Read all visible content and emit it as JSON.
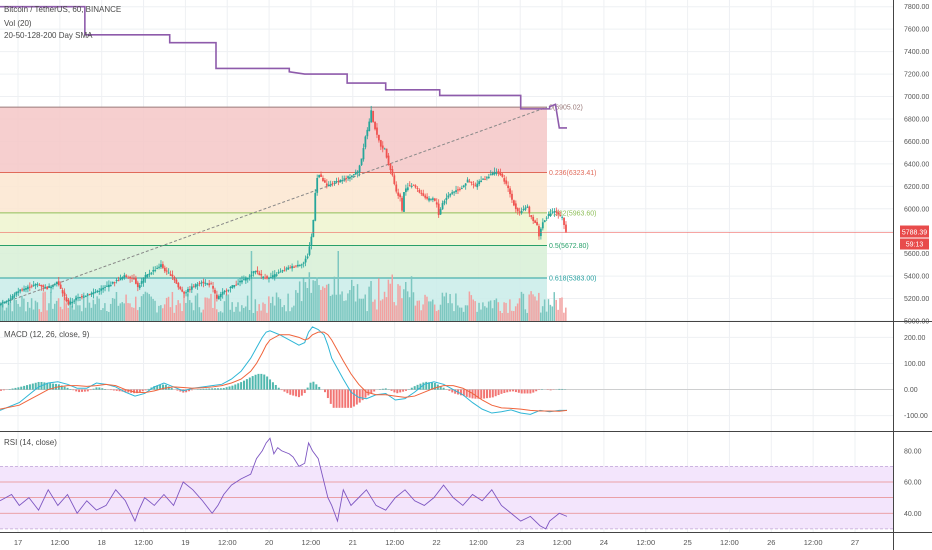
{
  "header": {
    "symbol_line": "Bitcoin / TetherUS, 60, BINANCE",
    "volume_label": "Vol (20)",
    "sma_label": "20-50-128-200 Day SMA"
  },
  "panes": {
    "macd_label": "MACD (12, 26, close, 9)",
    "rsi_label": "RSI (14, close)"
  },
  "price_badges": {
    "last_price": "5788.39",
    "countdown": "59:13"
  },
  "colors": {
    "up": "#26a69a",
    "down": "#ef5350",
    "sma": "#8e5bab",
    "macd": "#2fb6d6",
    "signal": "#f0643c",
    "rsi": "#7e57c2",
    "rsi_band": "#f3e5fc",
    "badge": "#e84b4b"
  },
  "chart_data": [
    {
      "type": "candlestick",
      "title": "Bitcoin / TetherUS, 60, BINANCE",
      "x_ticks": [
        "17",
        "12:00",
        "18",
        "12:00",
        "19",
        "12:00",
        "20",
        "12:00",
        "21",
        "12:00",
        "22",
        "12:00",
        "23",
        "12:00",
        "24",
        "12:00",
        "25",
        "12:00",
        "26",
        "12:00",
        "27"
      ],
      "y_ticks": [
        "7800.00",
        "7600.00",
        "7400.00",
        "7200.00",
        "7000.00",
        "6800.00",
        "6600.00",
        "6400.00",
        "6200.00",
        "6000.00",
        "5800.00",
        "5600.00",
        "5400.00",
        "5200.00",
        "5000.00"
      ],
      "ylim": [
        5000,
        7860
      ],
      "grid": true,
      "close_path": [
        [
          0,
          5150
        ],
        [
          6,
          5200
        ],
        [
          10,
          5270
        ],
        [
          15,
          5300
        ],
        [
          20,
          5330
        ],
        [
          25,
          5290
        ],
        [
          30,
          5350
        ],
        [
          33,
          5250
        ],
        [
          36,
          5150
        ],
        [
          40,
          5200
        ],
        [
          45,
          5230
        ],
        [
          50,
          5260
        ],
        [
          55,
          5300
        ],
        [
          60,
          5350
        ],
        [
          65,
          5400
        ],
        [
          70,
          5380
        ],
        [
          72,
          5300
        ],
        [
          76,
          5400
        ],
        [
          80,
          5450
        ],
        [
          84,
          5500
        ],
        [
          86,
          5450
        ],
        [
          90,
          5400
        ],
        [
          93,
          5300
        ],
        [
          96,
          5250
        ],
        [
          100,
          5300
        ],
        [
          105,
          5350
        ],
        [
          110,
          5320
        ],
        [
          113,
          5200
        ],
        [
          116,
          5250
        ],
        [
          120,
          5300
        ],
        [
          125,
          5350
        ],
        [
          130,
          5400
        ],
        [
          133,
          5450
        ],
        [
          136,
          5400
        ],
        [
          140,
          5380
        ],
        [
          145,
          5430
        ],
        [
          150,
          5470
        ],
        [
          155,
          5500
        ],
        [
          158,
          5520
        ],
        [
          160,
          5580
        ],
        [
          162,
          5750
        ],
        [
          163,
          5900
        ],
        [
          164,
          6150
        ],
        [
          165,
          6280
        ],
        [
          166,
          6300
        ],
        [
          168,
          6250
        ],
        [
          170,
          6200
        ],
        [
          173,
          6230
        ],
        [
          176,
          6250
        ],
        [
          180,
          6270
        ],
        [
          183,
          6300
        ],
        [
          186,
          6330
        ],
        [
          188,
          6450
        ],
        [
          190,
          6650
        ],
        [
          191,
          6700
        ],
        [
          192,
          6780
        ],
        [
          193,
          6870
        ],
        [
          194,
          6780
        ],
        [
          196,
          6650
        ],
        [
          198,
          6560
        ],
        [
          200,
          6530
        ],
        [
          202,
          6400
        ],
        [
          204,
          6300
        ],
        [
          206,
          6150
        ],
        [
          208,
          6100
        ],
        [
          209,
          5980
        ],
        [
          210,
          6150
        ],
        [
          212,
          6200
        ],
        [
          215,
          6210
        ],
        [
          218,
          6150
        ],
        [
          220,
          6120
        ],
        [
          222,
          6080
        ],
        [
          225,
          6090
        ],
        [
          227,
          6040
        ],
        [
          228,
          5950
        ],
        [
          230,
          6050
        ],
        [
          232,
          6100
        ],
        [
          235,
          6150
        ],
        [
          238,
          6170
        ],
        [
          240,
          6190
        ],
        [
          243,
          6250
        ],
        [
          245,
          6230
        ],
        [
          247,
          6200
        ],
        [
          250,
          6260
        ],
        [
          253,
          6280
        ],
        [
          255,
          6310
        ],
        [
          258,
          6330
        ],
        [
          260,
          6300
        ],
        [
          262,
          6250
        ],
        [
          264,
          6180
        ],
        [
          266,
          6080
        ],
        [
          268,
          6000
        ],
        [
          270,
          5970
        ],
        [
          272,
          6000
        ],
        [
          274,
          6010
        ],
        [
          275,
          5950
        ],
        [
          277,
          5900
        ],
        [
          279,
          5850
        ],
        [
          280,
          5760
        ],
        [
          282,
          5880
        ],
        [
          284,
          5930
        ],
        [
          286,
          5960
        ],
        [
          288,
          5980
        ],
        [
          290,
          5950
        ],
        [
          292,
          5920
        ],
        [
          293,
          5850
        ],
        [
          294,
          5788
        ]
      ],
      "fibonacci": [
        {
          "label": "0(6905.02)",
          "level": 6905.02
        },
        {
          "label": "0.236(6323.41)",
          "level": 6323.41
        },
        {
          "label": "0.382(5963.60)",
          "level": 5963.6
        },
        {
          "label": "0.5(5672.80)",
          "level": 5672.8
        },
        {
          "label": "0.618(5383.00)",
          "level": 5383.0
        }
      ],
      "sma_steps": [
        [
          0,
          7800
        ],
        [
          44,
          7800
        ],
        [
          44,
          7550
        ],
        [
          88,
          7550
        ],
        [
          88,
          7480
        ],
        [
          112,
          7480
        ],
        [
          112,
          7250
        ],
        [
          150,
          7250
        ],
        [
          150,
          7220
        ],
        [
          158,
          7200
        ],
        [
          180,
          7200
        ],
        [
          180,
          7120
        ],
        [
          200,
          7120
        ],
        [
          200,
          7060
        ],
        [
          228,
          7060
        ],
        [
          228,
          7010
        ],
        [
          270,
          7010
        ],
        [
          270,
          6890
        ],
        [
          285,
          6890
        ],
        [
          285,
          6910
        ],
        [
          288,
          6930
        ],
        [
          290,
          6720
        ],
        [
          294,
          6720
        ]
      ],
      "current_price": 5788.39
    },
    {
      "type": "bar",
      "title": "Vol (20)",
      "note": "volume histogram in lower price pane"
    },
    {
      "type": "line",
      "title": "MACD (12, 26, close, 9)",
      "y_ticks": [
        "200.00",
        "100.00",
        "0.00",
        "-100.00"
      ],
      "ylim": [
        -155,
        255
      ],
      "macd": [
        [
          0,
          -80
        ],
        [
          10,
          -50
        ],
        [
          15,
          -20
        ],
        [
          20,
          10
        ],
        [
          25,
          25
        ],
        [
          30,
          30
        ],
        [
          35,
          20
        ],
        [
          40,
          5
        ],
        [
          45,
          5
        ],
        [
          50,
          25
        ],
        [
          55,
          20
        ],
        [
          60,
          10
        ],
        [
          65,
          -10
        ],
        [
          70,
          -25
        ],
        [
          75,
          -15
        ],
        [
          80,
          10
        ],
        [
          85,
          25
        ],
        [
          90,
          10
        ],
        [
          95,
          -5
        ],
        [
          100,
          5
        ],
        [
          105,
          10
        ],
        [
          110,
          15
        ],
        [
          115,
          20
        ],
        [
          120,
          40
        ],
        [
          125,
          70
        ],
        [
          130,
          120
        ],
        [
          133,
          160
        ],
        [
          136,
          200
        ],
        [
          138,
          220
        ],
        [
          140,
          225
        ],
        [
          145,
          210
        ],
        [
          150,
          190
        ],
        [
          155,
          170
        ],
        [
          158,
          180
        ],
        [
          160,
          220
        ],
        [
          162,
          240
        ],
        [
          165,
          230
        ],
        [
          168,
          210
        ],
        [
          170,
          170
        ],
        [
          172,
          120
        ],
        [
          175,
          80
        ],
        [
          178,
          40
        ],
        [
          182,
          -10
        ],
        [
          186,
          -30
        ],
        [
          190,
          -35
        ],
        [
          195,
          -20
        ],
        [
          200,
          -15
        ],
        [
          205,
          -40
        ],
        [
          210,
          -35
        ],
        [
          215,
          -10
        ],
        [
          220,
          20
        ],
        [
          225,
          30
        ],
        [
          230,
          20
        ],
        [
          235,
          0
        ],
        [
          240,
          -20
        ],
        [
          245,
          -50
        ],
        [
          250,
          -75
        ],
        [
          255,
          -90
        ],
        [
          260,
          -85
        ],
        [
          265,
          -78
        ],
        [
          270,
          -90
        ],
        [
          275,
          -95
        ],
        [
          280,
          -80
        ],
        [
          285,
          -85
        ],
        [
          290,
          -80
        ],
        [
          294,
          -80
        ]
      ],
      "signal": [
        [
          0,
          -75
        ],
        [
          10,
          -60
        ],
        [
          15,
          -40
        ],
        [
          20,
          -20
        ],
        [
          25,
          0
        ],
        [
          30,
          10
        ],
        [
          35,
          15
        ],
        [
          40,
          15
        ],
        [
          45,
          12
        ],
        [
          50,
          15
        ],
        [
          55,
          20
        ],
        [
          60,
          15
        ],
        [
          65,
          0
        ],
        [
          70,
          -10
        ],
        [
          75,
          -12
        ],
        [
          80,
          -5
        ],
        [
          85,
          5
        ],
        [
          90,
          10
        ],
        [
          95,
          8
        ],
        [
          100,
          5
        ],
        [
          105,
          7
        ],
        [
          110,
          10
        ],
        [
          115,
          15
        ],
        [
          120,
          25
        ],
        [
          125,
          40
        ],
        [
          130,
          70
        ],
        [
          133,
          100
        ],
        [
          136,
          140
        ],
        [
          138,
          170
        ],
        [
          140,
          190
        ],
        [
          145,
          210
        ],
        [
          150,
          210
        ],
        [
          155,
          200
        ],
        [
          158,
          190
        ],
        [
          160,
          195
        ],
        [
          162,
          210
        ],
        [
          165,
          220
        ],
        [
          168,
          220
        ],
        [
          170,
          210
        ],
        [
          172,
          190
        ],
        [
          175,
          150
        ],
        [
          178,
          110
        ],
        [
          182,
          60
        ],
        [
          186,
          20
        ],
        [
          190,
          -10
        ],
        [
          195,
          -20
        ],
        [
          200,
          -20
        ],
        [
          205,
          -25
        ],
        [
          210,
          -30
        ],
        [
          215,
          -25
        ],
        [
          220,
          -10
        ],
        [
          225,
          5
        ],
        [
          230,
          15
        ],
        [
          235,
          15
        ],
        [
          240,
          5
        ],
        [
          245,
          -15
        ],
        [
          250,
          -40
        ],
        [
          255,
          -60
        ],
        [
          260,
          -70
        ],
        [
          265,
          -72
        ],
        [
          270,
          -75
        ],
        [
          275,
          -80
        ],
        [
          280,
          -82
        ],
        [
          285,
          -82
        ],
        [
          290,
          -83
        ],
        [
          294,
          -80
        ]
      ]
    },
    {
      "type": "line",
      "title": "RSI (14, close)",
      "y_ticks": [
        "80.00",
        "60.00",
        "40.00"
      ],
      "ylim": [
        28,
        92
      ],
      "rsi": [
        [
          0,
          48
        ],
        [
          6,
          52
        ],
        [
          10,
          45
        ],
        [
          15,
          50
        ],
        [
          20,
          42
        ],
        [
          25,
          55
        ],
        [
          30,
          45
        ],
        [
          35,
          52
        ],
        [
          40,
          40
        ],
        [
          45,
          48
        ],
        [
          50,
          42
        ],
        [
          55,
          45
        ],
        [
          60,
          55
        ],
        [
          65,
          48
        ],
        [
          70,
          35
        ],
        [
          72,
          42
        ],
        [
          75,
          50
        ],
        [
          80,
          45
        ],
        [
          85,
          52
        ],
        [
          90,
          45
        ],
        [
          95,
          60
        ],
        [
          100,
          55
        ],
        [
          105,
          48
        ],
        [
          110,
          40
        ],
        [
          113,
          45
        ],
        [
          116,
          52
        ],
        [
          120,
          58
        ],
        [
          125,
          62
        ],
        [
          130,
          65
        ],
        [
          133,
          75
        ],
        [
          136,
          80
        ],
        [
          138,
          85
        ],
        [
          140,
          88
        ],
        [
          142,
          78
        ],
        [
          144,
          82
        ],
        [
          146,
          80
        ],
        [
          150,
          78
        ],
        [
          152,
          76
        ],
        [
          155,
          70
        ],
        [
          158,
          72
        ],
        [
          160,
          85
        ],
        [
          162,
          80
        ],
        [
          165,
          75
        ],
        [
          168,
          60
        ],
        [
          170,
          50
        ],
        [
          172,
          45
        ],
        [
          175,
          35
        ],
        [
          178,
          55
        ],
        [
          182,
          45
        ],
        [
          186,
          50
        ],
        [
          190,
          55
        ],
        [
          195,
          45
        ],
        [
          200,
          42
        ],
        [
          205,
          50
        ],
        [
          210,
          55
        ],
        [
          215,
          48
        ],
        [
          220,
          45
        ],
        [
          225,
          50
        ],
        [
          230,
          58
        ],
        [
          235,
          50
        ],
        [
          240,
          45
        ],
        [
          245,
          52
        ],
        [
          250,
          48
        ],
        [
          255,
          55
        ],
        [
          260,
          45
        ],
        [
          265,
          40
        ],
        [
          270,
          35
        ],
        [
          275,
          38
        ],
        [
          280,
          32
        ],
        [
          283,
          30
        ],
        [
          285,
          35
        ],
        [
          290,
          40
        ],
        [
          294,
          38
        ]
      ],
      "bands": [
        70,
        60,
        50,
        40,
        30
      ]
    }
  ]
}
